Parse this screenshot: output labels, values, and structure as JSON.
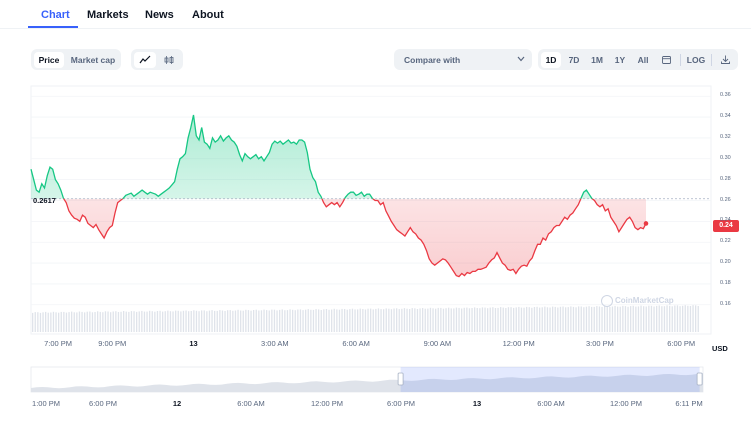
{
  "tabs": [
    "Chart",
    "Markets",
    "News",
    "About"
  ],
  "toolbar": {
    "price_label": "Price",
    "market_cap_label": "Market cap",
    "line_icon": "line-chart-icon",
    "candle_icon": "candlestick-icon",
    "compare_label": "Compare with",
    "ranges": [
      "1D",
      "7D",
      "1M",
      "1Y",
      "All"
    ],
    "active_range": "1D",
    "calendar_icon": "calendar-icon",
    "log_label": "LOG",
    "download_icon": "download-icon"
  },
  "chart_data": {
    "type": "line",
    "reference_price": 0.2617,
    "reference_label": "0.2617",
    "current_price_label": "0.24",
    "currency_label": "USD",
    "watermark": "CoinMarketCap",
    "y_ticks": [
      "0.36",
      "0.34",
      "0.32",
      "0.30",
      "0.28",
      "0.26",
      "0.24",
      "0.22",
      "0.20",
      "0.18",
      "0.16"
    ],
    "ylim": [
      0.155,
      0.365
    ],
    "x_ticks": [
      {
        "label": "7:00 PM",
        "t": 0,
        "bold": false
      },
      {
        "label": "9:00 PM",
        "t": 2,
        "bold": false
      },
      {
        "label": "13",
        "t": 5,
        "bold": true
      },
      {
        "label": "3:00 AM",
        "t": 8,
        "bold": false
      },
      {
        "label": "6:00 AM",
        "t": 11,
        "bold": false
      },
      {
        "label": "9:00 AM",
        "t": 14,
        "bold": false
      },
      {
        "label": "12:00 PM",
        "t": 17,
        "bold": false
      },
      {
        "label": "3:00 PM",
        "t": 20,
        "bold": false
      },
      {
        "label": "6:00 PM",
        "t": 23,
        "bold": false
      }
    ],
    "t_range": [
      -1,
      24.1
    ],
    "series": [
      {
        "values": [
          [
            -1,
            0.29
          ],
          [
            -0.9,
            0.28
          ],
          [
            -0.8,
            0.27
          ],
          [
            -0.7,
            0.268
          ],
          [
            -0.6,
            0.276
          ],
          [
            -0.5,
            0.272
          ],
          [
            -0.4,
            0.284
          ],
          [
            -0.3,
            0.292
          ],
          [
            -0.2,
            0.29
          ],
          [
            -0.1,
            0.28
          ],
          [
            0,
            0.276
          ],
          [
            0.1,
            0.27
          ],
          [
            0.2,
            0.262
          ],
          [
            0.3,
            0.258
          ],
          [
            0.4,
            0.25
          ],
          [
            0.5,
            0.246
          ],
          [
            0.6,
            0.243
          ],
          [
            0.7,
            0.242
          ],
          [
            0.8,
            0.24
          ],
          [
            0.9,
            0.246
          ],
          [
            1.0,
            0.244
          ],
          [
            1.1,
            0.238
          ],
          [
            1.2,
            0.236
          ],
          [
            1.3,
            0.234
          ],
          [
            1.4,
            0.237
          ],
          [
            1.5,
            0.232
          ],
          [
            1.6,
            0.228
          ],
          [
            1.7,
            0.224
          ],
          [
            1.8,
            0.23
          ],
          [
            1.9,
            0.234
          ],
          [
            2.0,
            0.236
          ],
          [
            2.1,
            0.248
          ],
          [
            2.2,
            0.258
          ],
          [
            2.3,
            0.26
          ],
          [
            2.4,
            0.262
          ],
          [
            2.5,
            0.265
          ],
          [
            2.6,
            0.266
          ],
          [
            2.7,
            0.267
          ],
          [
            2.8,
            0.264
          ],
          [
            2.9,
            0.266
          ],
          [
            3.0,
            0.268
          ],
          [
            3.1,
            0.27
          ],
          [
            3.2,
            0.268
          ],
          [
            3.3,
            0.266
          ],
          [
            3.4,
            0.268
          ],
          [
            3.5,
            0.267
          ],
          [
            3.6,
            0.266
          ],
          [
            3.7,
            0.264
          ],
          [
            3.8,
            0.266
          ],
          [
            3.9,
            0.268
          ],
          [
            4.0,
            0.27
          ],
          [
            4.1,
            0.272
          ],
          [
            4.2,
            0.275
          ],
          [
            4.3,
            0.278
          ],
          [
            4.4,
            0.29
          ],
          [
            4.5,
            0.3
          ],
          [
            4.6,
            0.302
          ],
          [
            4.7,
            0.305
          ],
          [
            4.8,
            0.32
          ],
          [
            4.9,
            0.33
          ],
          [
            5.0,
            0.342
          ],
          [
            5.1,
            0.322
          ],
          [
            5.2,
            0.318
          ],
          [
            5.3,
            0.33
          ],
          [
            5.4,
            0.316
          ],
          [
            5.5,
            0.314
          ],
          [
            5.6,
            0.31
          ],
          [
            5.7,
            0.32
          ],
          [
            5.8,
            0.316
          ],
          [
            5.9,
            0.318
          ],
          [
            6.0,
            0.322
          ],
          [
            6.1,
            0.317
          ],
          [
            6.2,
            0.32
          ],
          [
            6.3,
            0.322
          ],
          [
            6.4,
            0.318
          ],
          [
            6.5,
            0.316
          ],
          [
            6.6,
            0.312
          ],
          [
            6.7,
            0.304
          ],
          [
            6.8,
            0.298
          ],
          [
            6.9,
            0.305
          ],
          [
            7.0,
            0.302
          ],
          [
            7.1,
            0.3
          ],
          [
            7.2,
            0.302
          ],
          [
            7.3,
            0.304
          ],
          [
            7.4,
            0.3
          ],
          [
            7.5,
            0.302
          ],
          [
            7.6,
            0.298
          ],
          [
            7.7,
            0.302
          ],
          [
            7.8,
            0.306
          ],
          [
            7.9,
            0.314
          ],
          [
            8.0,
            0.317
          ],
          [
            8.1,
            0.315
          ],
          [
            8.2,
            0.317
          ],
          [
            8.3,
            0.314
          ],
          [
            8.4,
            0.316
          ],
          [
            8.5,
            0.318
          ],
          [
            8.6,
            0.315
          ],
          [
            8.7,
            0.316
          ],
          [
            8.8,
            0.314
          ],
          [
            8.9,
            0.318
          ],
          [
            9.0,
            0.318
          ],
          [
            9.1,
            0.316
          ],
          [
            9.2,
            0.306
          ],
          [
            9.3,
            0.29
          ],
          [
            9.4,
            0.282
          ],
          [
            9.5,
            0.278
          ],
          [
            9.6,
            0.268
          ],
          [
            9.7,
            0.264
          ],
          [
            9.8,
            0.258
          ],
          [
            9.9,
            0.254
          ],
          [
            10.0,
            0.256
          ],
          [
            10.1,
            0.258
          ],
          [
            10.2,
            0.256
          ],
          [
            10.3,
            0.258
          ],
          [
            10.4,
            0.254
          ],
          [
            10.5,
            0.258
          ],
          [
            10.6,
            0.263
          ],
          [
            10.7,
            0.266
          ],
          [
            10.8,
            0.268
          ],
          [
            10.9,
            0.268
          ],
          [
            11.0,
            0.265
          ],
          [
            11.1,
            0.266
          ],
          [
            11.2,
            0.268
          ],
          [
            11.3,
            0.264
          ],
          [
            11.4,
            0.266
          ],
          [
            11.5,
            0.266
          ],
          [
            11.6,
            0.262
          ],
          [
            11.7,
            0.26
          ],
          [
            11.8,
            0.26
          ],
          [
            11.9,
            0.256
          ],
          [
            12.0,
            0.258
          ],
          [
            12.1,
            0.25
          ],
          [
            12.2,
            0.245
          ],
          [
            12.3,
            0.24
          ],
          [
            12.4,
            0.236
          ],
          [
            12.5,
            0.232
          ],
          [
            12.6,
            0.23
          ],
          [
            12.7,
            0.228
          ],
          [
            12.8,
            0.226
          ],
          [
            12.9,
            0.23
          ],
          [
            13.0,
            0.234
          ],
          [
            13.1,
            0.23
          ],
          [
            13.2,
            0.228
          ],
          [
            13.3,
            0.224
          ],
          [
            13.4,
            0.222
          ],
          [
            13.5,
            0.218
          ],
          [
            13.6,
            0.212
          ],
          [
            13.7,
            0.204
          ],
          [
            13.8,
            0.2
          ],
          [
            13.9,
            0.198
          ],
          [
            14.0,
            0.2
          ],
          [
            14.1,
            0.202
          ],
          [
            14.2,
            0.204
          ],
          [
            14.3,
            0.203
          ],
          [
            14.4,
            0.2
          ],
          [
            14.5,
            0.196
          ],
          [
            14.6,
            0.192
          ],
          [
            14.7,
            0.188
          ],
          [
            14.8,
            0.187
          ],
          [
            14.9,
            0.19
          ],
          [
            15.0,
            0.188
          ],
          [
            15.1,
            0.191
          ],
          [
            15.2,
            0.19
          ],
          [
            15.3,
            0.192
          ],
          [
            15.4,
            0.192
          ],
          [
            15.5,
            0.194
          ],
          [
            15.6,
            0.194
          ],
          [
            15.7,
            0.195
          ],
          [
            15.8,
            0.196
          ],
          [
            15.9,
            0.2
          ],
          [
            16.0,
            0.203
          ],
          [
            16.1,
            0.205
          ],
          [
            16.2,
            0.21
          ],
          [
            16.3,
            0.205
          ],
          [
            16.4,
            0.2
          ],
          [
            16.5,
            0.198
          ],
          [
            16.6,
            0.194
          ],
          [
            16.7,
            0.193
          ],
          [
            16.8,
            0.194
          ],
          [
            16.9,
            0.19
          ],
          [
            17.0,
            0.194
          ],
          [
            17.1,
            0.197
          ],
          [
            17.2,
            0.198
          ],
          [
            17.3,
            0.197
          ],
          [
            17.4,
            0.202
          ],
          [
            17.5,
            0.205
          ],
          [
            17.6,
            0.212
          ],
          [
            17.7,
            0.218
          ],
          [
            17.8,
            0.218
          ],
          [
            17.9,
            0.224
          ],
          [
            18.0,
            0.222
          ],
          [
            18.1,
            0.228
          ],
          [
            18.2,
            0.23
          ],
          [
            18.3,
            0.234
          ],
          [
            18.4,
            0.236
          ],
          [
            18.5,
            0.236
          ],
          [
            18.6,
            0.24
          ],
          [
            18.7,
            0.244
          ],
          [
            18.8,
            0.242
          ],
          [
            18.9,
            0.246
          ],
          [
            19.0,
            0.248
          ],
          [
            19.1,
            0.252
          ],
          [
            19.2,
            0.256
          ],
          [
            19.3,
            0.262
          ],
          [
            19.4,
            0.268
          ],
          [
            19.5,
            0.27
          ],
          [
            19.6,
            0.266
          ],
          [
            19.7,
            0.262
          ],
          [
            19.8,
            0.26
          ],
          [
            19.9,
            0.256
          ],
          [
            20.0,
            0.254
          ],
          [
            20.1,
            0.256
          ],
          [
            20.2,
            0.25
          ],
          [
            20.3,
            0.252
          ],
          [
            20.4,
            0.244
          ],
          [
            20.5,
            0.24
          ],
          [
            20.6,
            0.236
          ],
          [
            20.7,
            0.23
          ],
          [
            20.8,
            0.234
          ],
          [
            20.9,
            0.238
          ],
          [
            21.0,
            0.242
          ],
          [
            21.1,
            0.244
          ],
          [
            21.2,
            0.24
          ],
          [
            21.3,
            0.234
          ],
          [
            21.4,
            0.232
          ],
          [
            21.5,
            0.234
          ],
          [
            21.6,
            0.233
          ],
          [
            21.7,
            0.238
          ]
        ]
      }
    ],
    "volume_levels": [
      0.55,
      0.9
    ],
    "overview": {
      "x_ticks": [
        {
          "label": "1:00 PM",
          "bold": false
        },
        {
          "label": "6:00 PM",
          "bold": false
        },
        {
          "label": "12",
          "bold": true
        },
        {
          "label": "6:00 AM",
          "bold": false
        },
        {
          "label": "12:00 PM",
          "bold": false
        },
        {
          "label": "6:00 PM",
          "bold": false
        },
        {
          "label": "13",
          "bold": true
        },
        {
          "label": "6:00 AM",
          "bold": false
        },
        {
          "label": "12:00 PM",
          "bold": false
        },
        {
          "label": "6:11 PM",
          "bold": false
        }
      ],
      "selection_start": 0.55,
      "selection_end": 0.995
    }
  },
  "colors": {
    "accent": "#3861fb",
    "up": "#16c784",
    "down": "#ea3943",
    "text": "#0d1421",
    "muted": "#58667e"
  }
}
